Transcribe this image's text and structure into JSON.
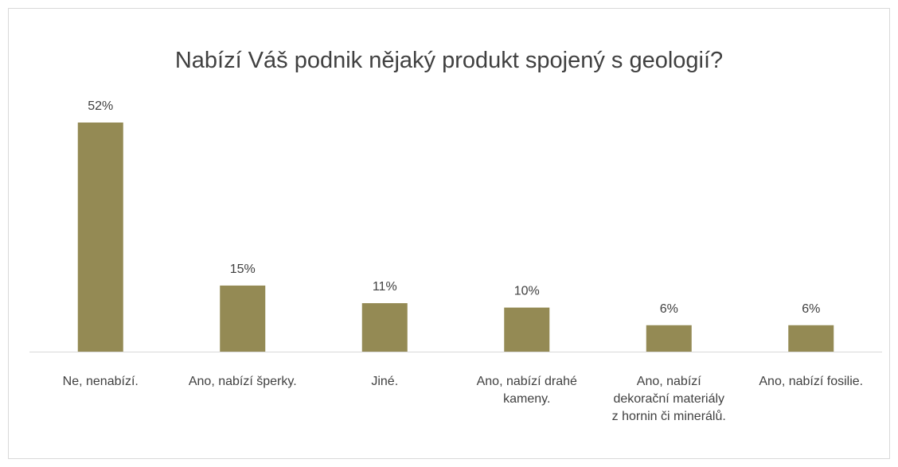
{
  "chart_data": {
    "type": "bar",
    "title": "Nabízí Váš podnik nějaký produkt spojený s geologií?",
    "categories": [
      "Ne, nenabízí.",
      "Ano, nabízí šperky.",
      "Jiné.",
      "Ano, nabízí drahé kameny.",
      "Ano, nabízí dekorační materiály z hornin či minerálů.",
      "Ano, nabízí fosilie."
    ],
    "values": [
      52,
      15,
      11,
      10,
      6,
      6
    ],
    "value_labels": [
      "52%",
      "15%",
      "11%",
      "10%",
      "6%",
      "6%"
    ],
    "color": "#948a54"
  }
}
